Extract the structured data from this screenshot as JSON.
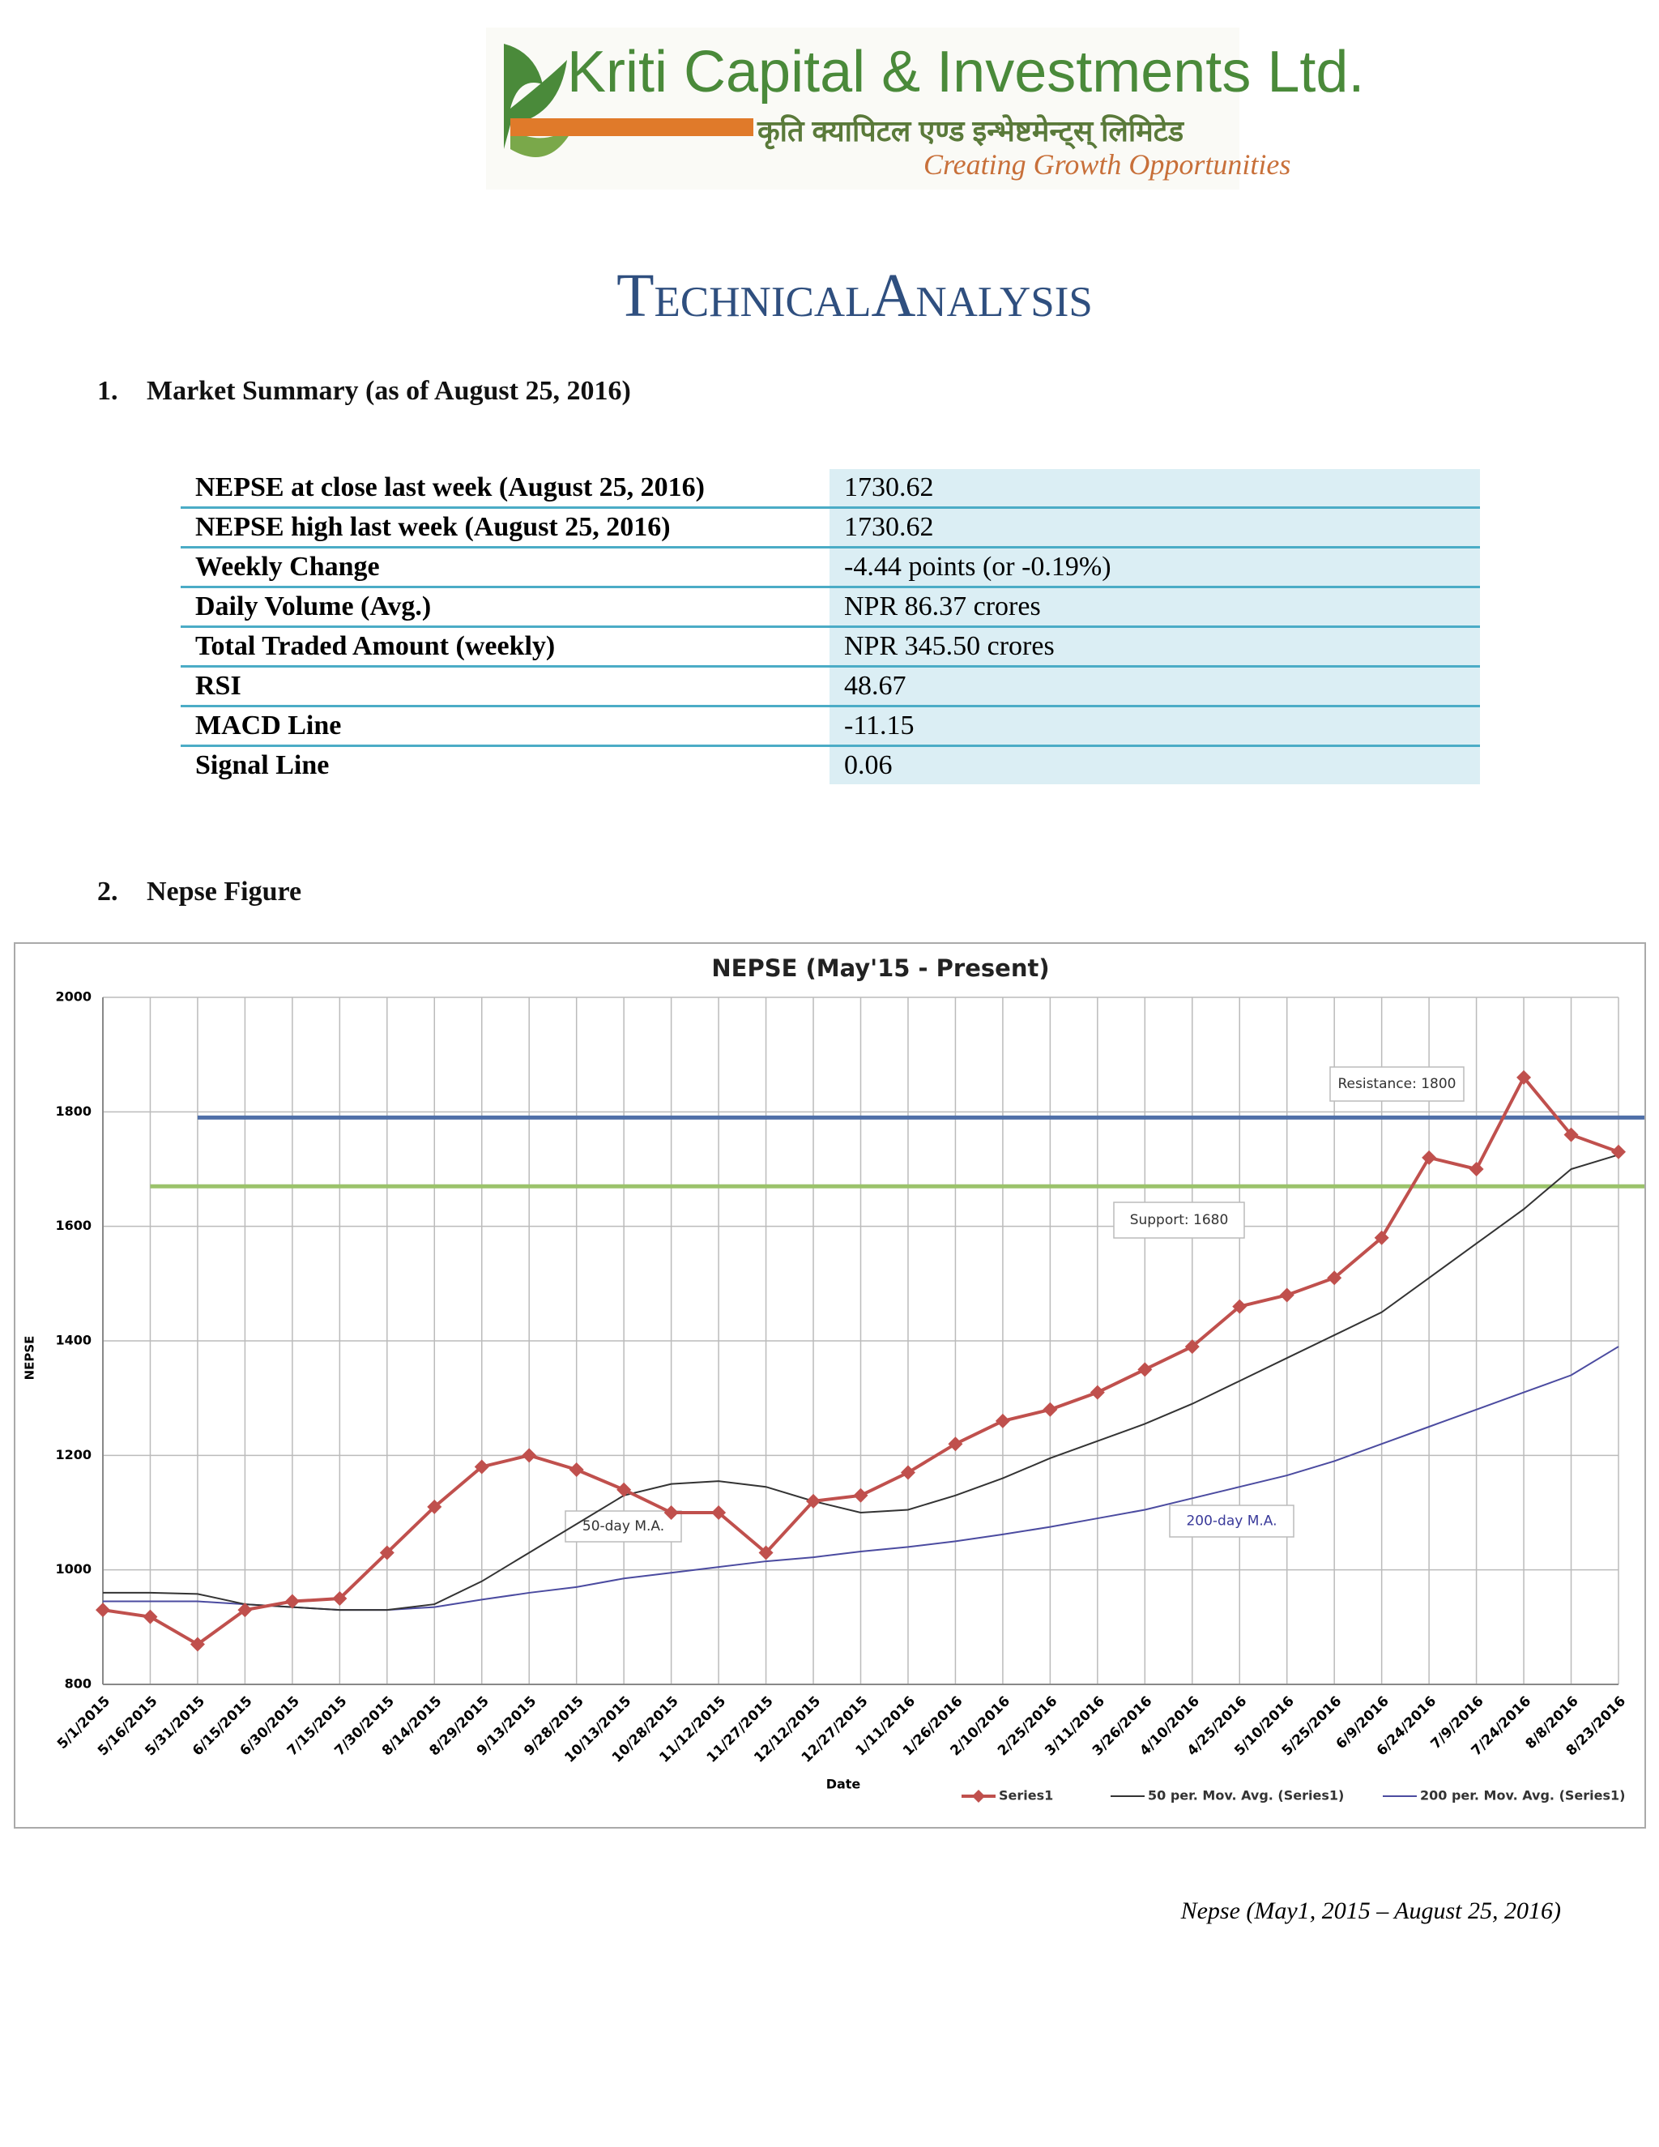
{
  "header": {
    "company": "Kriti Capital & Investments Ltd.",
    "company_local": "कृति क्यापिटल एण्ड इन्भेष्टमेन्ट्स् लिमिटेड",
    "tagline": "Creating Growth Opportunities",
    "title": "TechnicalAnalysis"
  },
  "sections": [
    {
      "number": "1.",
      "title": "Market Summary (as of August 25, 2016)"
    },
    {
      "number": "2.",
      "title": "Nepse Figure"
    }
  ],
  "table": {
    "rows": [
      [
        "NEPSE at close last week (August 25, 2016)",
        "1730.62"
      ],
      [
        "NEPSE high last week (August 25, 2016)",
        "1730.62"
      ],
      [
        "Weekly Change",
        "-4.44 points (or -0.19%)"
      ],
      [
        "Daily Volume (Avg.)",
        "NPR 86.37 crores"
      ],
      [
        "Total Traded Amount (weekly)",
        "NPR 345.50 crores"
      ],
      [
        "RSI",
        "48.67"
      ],
      [
        "MACD Line",
        "-11.15"
      ],
      [
        "Signal Line",
        "0.06"
      ]
    ]
  },
  "chart_data": {
    "type": "line",
    "title": "NEPSE (May'15 - Present)",
    "x_label": "Date",
    "y_label": "NEPSE",
    "categories": [
      "5/1/2015",
      "5/16/2015",
      "5/31/2015",
      "6/15/2015",
      "6/30/2015",
      "7/15/2015",
      "7/30/2015",
      "8/14/2015",
      "8/29/2015",
      "9/13/2015",
      "9/28/2015",
      "10/13/2015",
      "10/28/2015",
      "11/12/2015",
      "11/27/2015",
      "12/12/2015",
      "12/27/2015",
      "1/11/2016",
      "1/26/2016",
      "2/10/2016",
      "2/25/2016",
      "3/11/2016",
      "3/26/2016",
      "4/10/2016",
      "4/25/2016",
      "5/10/2016",
      "5/25/2016",
      "6/9/2016",
      "6/24/2016",
      "7/9/2016",
      "7/24/2016",
      "8/8/2016",
      "8/23/2016"
    ],
    "series": [
      {
        "name": "Series1",
        "color": "#c0504d",
        "marker": "diamond",
        "values": [
          930,
          918,
          870,
          930,
          945,
          950,
          1030,
          1110,
          1180,
          1200,
          1175,
          1140,
          1100,
          1100,
          1030,
          1120,
          1130,
          1170,
          1220,
          1260,
          1280,
          1310,
          1350,
          1390,
          1460,
          1480,
          1510,
          1580,
          1720,
          1700,
          1860,
          1760,
          1730
        ]
      },
      {
        "name": "50 per. Mov. Avg. (Series1)",
        "color": "#333333",
        "values": [
          960,
          960,
          958,
          940,
          935,
          930,
          930,
          940,
          980,
          1030,
          1080,
          1130,
          1150,
          1155,
          1145,
          1120,
          1100,
          1105,
          1130,
          1160,
          1195,
          1225,
          1255,
          1290,
          1330,
          1370,
          1410,
          1450,
          1510,
          1570,
          1630,
          1700,
          1725
        ]
      },
      {
        "name": "200 per. Mov. Avg. (Series1)",
        "color": "#4b4ba0",
        "values": [
          945,
          945,
          945,
          940,
          935,
          930,
          930,
          935,
          948,
          960,
          970,
          985,
          995,
          1005,
          1015,
          1022,
          1032,
          1040,
          1050,
          1062,
          1075,
          1090,
          1105,
          1125,
          1145,
          1165,
          1190,
          1220,
          1250,
          1280,
          1310,
          1340,
          1390
        ]
      }
    ],
    "reference_lines": [
      {
        "value": 1790,
        "color": "#4f6fa8",
        "start": "5/31/2015"
      },
      {
        "value": 1670,
        "color": "#9bc36b",
        "start": "5/16/2015"
      }
    ],
    "annotations": [
      "Resistance: 1800",
      "Support: 1680",
      "50-day M.A.",
      "200-day M.A."
    ],
    "ylim": [
      800,
      2000
    ],
    "yticks": [
      800,
      1000,
      1200,
      1400,
      1600,
      1800,
      2000
    ],
    "grid": true,
    "legend": "bottom"
  },
  "caption": "Nepse (May1, 2015 – August 25, 2016)"
}
